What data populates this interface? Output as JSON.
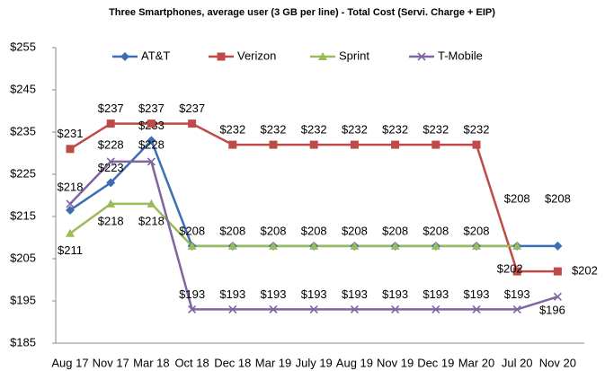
{
  "chart_data": {
    "type": "line",
    "title": "Three Smartphones, average user (3 GB per line) - Total Cost (Servi. Charge + EIP)",
    "categories": [
      "Aug 17",
      "Nov 17",
      "Mar 18",
      "Oct 18",
      "Dec 18",
      "Mar 19",
      "July 19",
      "Aug 19",
      "Nov 19",
      "Dec 19",
      "Mar 20",
      "Jul 20",
      "Nov 20"
    ],
    "series": [
      {
        "name": "AT&T",
        "color": "#3d6eb4",
        "marker": "diamond",
        "values": [
          216.5,
          223,
          233,
          208,
          208,
          208,
          208,
          208,
          208,
          208,
          208,
          208,
          208
        ],
        "value_labels": [
          null,
          "$223",
          "$233",
          null,
          null,
          null,
          null,
          null,
          null,
          null,
          null,
          "$208",
          "$208"
        ]
      },
      {
        "name": "Verizon",
        "color": "#be4b48",
        "marker": "square",
        "values": [
          231,
          237,
          237,
          237,
          232,
          232,
          232,
          232,
          232,
          232,
          232,
          202,
          202
        ],
        "value_labels": [
          "$231",
          "$237",
          "$237",
          "$237",
          "$232",
          "$232",
          "$232",
          "$232",
          "$232",
          "$232",
          "$232",
          "$202",
          "$202"
        ]
      },
      {
        "name": "Sprint",
        "color": "#9bbb59",
        "marker": "triangle",
        "values": [
          211,
          218,
          218,
          208,
          208,
          208,
          208,
          208,
          208,
          208,
          208,
          208,
          null
        ],
        "value_labels": [
          "$211",
          "$218",
          "$218",
          "$208",
          "$208",
          "$208",
          "$208",
          "$208",
          "$208",
          "$208",
          "$208",
          null,
          null
        ]
      },
      {
        "name": "T-Mobile",
        "color": "#8064a2",
        "marker": "x",
        "values": [
          218,
          228,
          228,
          193,
          193,
          193,
          193,
          193,
          193,
          193,
          193,
          193,
          196
        ],
        "value_labels": [
          "$218",
          "$228",
          "$228",
          "$193",
          "$193",
          "$193",
          "$193",
          "$193",
          "$193",
          "$193",
          "$193",
          "$193",
          "$196"
        ]
      }
    ],
    "ylim": [
      185,
      255
    ],
    "yticks": [
      {
        "value": 185,
        "label": "$185"
      },
      {
        "value": 195,
        "label": "$195"
      },
      {
        "value": 205,
        "label": "$205"
      },
      {
        "value": 215,
        "label": "$215"
      },
      {
        "value": 225,
        "label": "$225"
      },
      {
        "value": 235,
        "label": "$235"
      },
      {
        "value": 245,
        "label": "$245"
      },
      {
        "value": 255,
        "label": "$255"
      }
    ],
    "legend": "top"
  }
}
